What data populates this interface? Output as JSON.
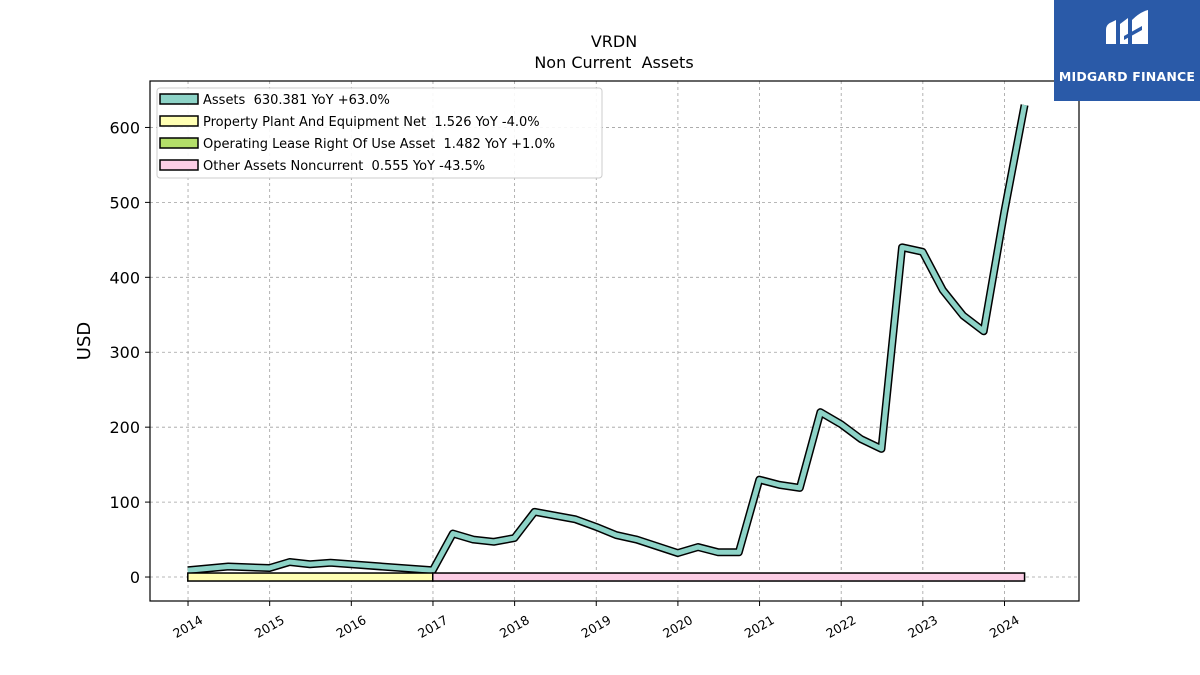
{
  "brand": {
    "name": "MIDGARD FINANCE",
    "logo_color": "#2a5aa8"
  },
  "chart_data": {
    "type": "area",
    "title": "VRDN",
    "subtitle": "Non Current  Assets",
    "ylabel": "USD",
    "xlabel": "",
    "x_ticks": [
      "2014",
      "2015",
      "2016",
      "2017",
      "2018",
      "2019",
      "2020",
      "2021",
      "2022",
      "2023",
      "2024"
    ],
    "y_ticks": [
      "0",
      "100",
      "200",
      "300",
      "400",
      "500",
      "600"
    ],
    "xlim": [
      "2013-07-15",
      "2024-11-30"
    ],
    "ylim": [
      -32,
      662
    ],
    "grid": true,
    "legend_position": "top-left",
    "series": [
      {
        "name": "Assets",
        "legend": "Assets  630.381 YoY +63.0%",
        "color": "#8dd3c7",
        "points": [
          [
            "2013-12-31",
            9
          ],
          [
            "2014-06-30",
            14
          ],
          [
            "2014-12-31",
            12
          ],
          [
            "2015-03-31",
            20
          ],
          [
            "2015-06-30",
            17
          ],
          [
            "2015-09-30",
            19
          ],
          [
            "2015-12-31",
            17
          ],
          [
            "2016-12-31",
            9
          ],
          [
            "2017-03-31",
            58
          ],
          [
            "2017-06-30",
            50
          ],
          [
            "2017-09-30",
            47
          ],
          [
            "2017-12-31",
            52
          ],
          [
            "2018-03-31",
            87
          ],
          [
            "2018-09-30",
            77
          ],
          [
            "2018-12-31",
            67
          ],
          [
            "2019-03-31",
            56
          ],
          [
            "2019-06-30",
            50
          ],
          [
            "2019-09-30",
            41
          ],
          [
            "2019-12-31",
            32
          ],
          [
            "2020-03-31",
            40
          ],
          [
            "2020-06-30",
            33
          ],
          [
            "2020-09-30",
            33
          ],
          [
            "2020-12-31",
            130
          ],
          [
            "2021-03-31",
            123
          ],
          [
            "2021-06-30",
            119
          ],
          [
            "2021-09-30",
            220
          ],
          [
            "2021-12-31",
            204
          ],
          [
            "2022-03-31",
            184
          ],
          [
            "2022-06-30",
            171
          ],
          [
            "2022-09-30",
            440
          ],
          [
            "2022-12-31",
            434
          ],
          [
            "2023-03-31",
            383
          ],
          [
            "2023-06-30",
            349
          ],
          [
            "2023-09-30",
            328
          ],
          [
            "2023-12-31",
            487
          ],
          [
            "2024-03-31",
            630
          ]
        ]
      },
      {
        "name": "Property Plant And Equipment Net",
        "legend": "Property Plant And Equipment Net  1.526 YoY -4.0%",
        "color": "#ffffb3",
        "points": [
          [
            "2013-12-31",
            3
          ],
          [
            "2014-12-31",
            3
          ],
          [
            "2015-12-31",
            3
          ],
          [
            "2016-12-31",
            3
          ]
        ]
      },
      {
        "name": "Operating Lease Right Of Use Asset",
        "legend": "Operating Lease Right Of Use Asset  1.482 YoY +1.0%",
        "color": "#b3de69",
        "points": []
      },
      {
        "name": "Other Assets Noncurrent",
        "legend": "Other Assets Noncurrent  0.555 YoY -43.5%",
        "color": "#fccde5",
        "points": [
          [
            "2016-12-31",
            3
          ],
          [
            "2024-03-31",
            3
          ]
        ]
      }
    ]
  }
}
